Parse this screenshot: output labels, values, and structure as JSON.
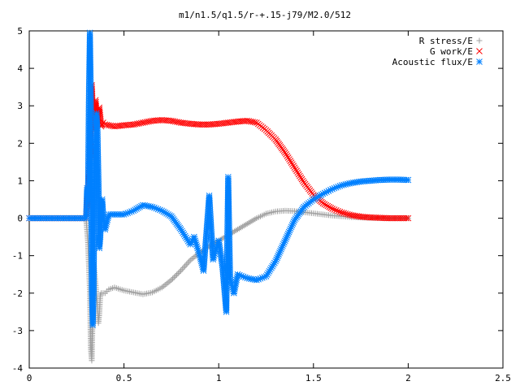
{
  "chart_data": {
    "type": "scatter",
    "title": "m1/n1.5/q1.5/r-+.15-j79/M2.0/512",
    "xlabel": "",
    "ylabel": "",
    "xlim": [
      0,
      2.5
    ],
    "ylim": [
      -4,
      5
    ],
    "x_ticks": [
      "0",
      "0.5",
      "1",
      "1.5",
      "2",
      "2.5"
    ],
    "y_ticks": [
      "-4",
      "-3",
      "-2",
      "-1",
      "0",
      "1",
      "2",
      "3",
      "4",
      "5"
    ],
    "grid": false,
    "legend_position": "top-right",
    "series": [
      {
        "name": "R stress/E",
        "color": "#a0a0a0",
        "marker": "plus",
        "points": [
          [
            0.0,
            0.0
          ],
          [
            0.1,
            0.0
          ],
          [
            0.2,
            0.0
          ],
          [
            0.3,
            0.0
          ],
          [
            0.31,
            -0.65
          ],
          [
            0.315,
            -1.3
          ],
          [
            0.32,
            -1.95
          ],
          [
            0.325,
            -3.5
          ],
          [
            0.33,
            -3.8
          ],
          [
            0.34,
            -1.2
          ],
          [
            0.345,
            -1.45
          ],
          [
            0.36,
            -2.35
          ],
          [
            0.365,
            -2.8
          ],
          [
            0.37,
            -2.55
          ],
          [
            0.375,
            -2.05
          ],
          [
            0.38,
            -2.0
          ],
          [
            0.4,
            -2.0
          ],
          [
            0.42,
            -1.9
          ],
          [
            0.45,
            -1.85
          ],
          [
            0.5,
            -1.93
          ],
          [
            0.55,
            -1.98
          ],
          [
            0.6,
            -2.03
          ],
          [
            0.65,
            -1.98
          ],
          [
            0.7,
            -1.85
          ],
          [
            0.75,
            -1.65
          ],
          [
            0.8,
            -1.4
          ],
          [
            0.85,
            -1.12
          ],
          [
            0.9,
            -0.92
          ],
          [
            0.95,
            -0.75
          ],
          [
            1.0,
            -0.6
          ],
          [
            1.05,
            -0.45
          ],
          [
            1.1,
            -0.3
          ],
          [
            1.15,
            -0.15
          ],
          [
            1.2,
            0.0
          ],
          [
            1.25,
            0.12
          ],
          [
            1.3,
            0.18
          ],
          [
            1.35,
            0.2
          ],
          [
            1.4,
            0.19
          ],
          [
            1.45,
            0.16
          ],
          [
            1.5,
            0.13
          ],
          [
            1.55,
            0.1
          ],
          [
            1.6,
            0.07
          ],
          [
            1.7,
            0.03
          ],
          [
            1.8,
            0.01
          ],
          [
            1.9,
            0.0
          ],
          [
            2.0,
            0.0
          ]
        ]
      },
      {
        "name": "G work/E",
        "color": "#ff0000",
        "marker": "x",
        "points": [
          [
            0.0,
            0.0
          ],
          [
            0.1,
            0.0
          ],
          [
            0.2,
            0.0
          ],
          [
            0.3,
            0.0
          ],
          [
            0.31,
            0.8
          ],
          [
            0.315,
            1.2
          ],
          [
            0.32,
            1.65
          ],
          [
            0.325,
            2.4
          ],
          [
            0.33,
            3.55
          ],
          [
            0.34,
            2.35
          ],
          [
            0.35,
            3.15
          ],
          [
            0.36,
            2.6
          ],
          [
            0.37,
            2.95
          ],
          [
            0.38,
            2.45
          ],
          [
            0.39,
            2.55
          ],
          [
            0.4,
            2.5
          ],
          [
            0.45,
            2.45
          ],
          [
            0.5,
            2.48
          ],
          [
            0.55,
            2.5
          ],
          [
            0.6,
            2.55
          ],
          [
            0.65,
            2.6
          ],
          [
            0.7,
            2.62
          ],
          [
            0.75,
            2.6
          ],
          [
            0.8,
            2.55
          ],
          [
            0.85,
            2.52
          ],
          [
            0.9,
            2.5
          ],
          [
            0.95,
            2.5
          ],
          [
            1.0,
            2.52
          ],
          [
            1.05,
            2.55
          ],
          [
            1.1,
            2.58
          ],
          [
            1.15,
            2.6
          ],
          [
            1.2,
            2.55
          ],
          [
            1.25,
            2.35
          ],
          [
            1.3,
            2.1
          ],
          [
            1.35,
            1.75
          ],
          [
            1.4,
            1.35
          ],
          [
            1.45,
            0.95
          ],
          [
            1.5,
            0.62
          ],
          [
            1.55,
            0.4
          ],
          [
            1.6,
            0.25
          ],
          [
            1.65,
            0.15
          ],
          [
            1.7,
            0.08
          ],
          [
            1.75,
            0.04
          ],
          [
            1.8,
            0.02
          ],
          [
            1.9,
            0.0
          ],
          [
            2.0,
            0.0
          ]
        ]
      },
      {
        "name": "Acoustic flux/E",
        "color": "#0080ff",
        "marker": "star",
        "points": [
          [
            0.0,
            0.0
          ],
          [
            0.1,
            0.0
          ],
          [
            0.2,
            0.0
          ],
          [
            0.3,
            0.0
          ],
          [
            0.305,
            0.8
          ],
          [
            0.31,
            0.5
          ],
          [
            0.315,
            3.25
          ],
          [
            0.32,
            4.95
          ],
          [
            0.325,
            3.2
          ],
          [
            0.33,
            -1.9
          ],
          [
            0.335,
            -2.85
          ],
          [
            0.34,
            -1.95
          ],
          [
            0.345,
            1.9
          ],
          [
            0.35,
            2.0
          ],
          [
            0.355,
            2.8
          ],
          [
            0.36,
            2.35
          ],
          [
            0.365,
            1.05
          ],
          [
            0.37,
            -0.8
          ],
          [
            0.375,
            -0.5
          ],
          [
            0.38,
            0.2
          ],
          [
            0.385,
            0.5
          ],
          [
            0.39,
            0.1
          ],
          [
            0.4,
            -0.3
          ],
          [
            0.42,
            0.1
          ],
          [
            0.45,
            0.1
          ],
          [
            0.5,
            0.1
          ],
          [
            0.55,
            0.2
          ],
          [
            0.6,
            0.35
          ],
          [
            0.65,
            0.3
          ],
          [
            0.7,
            0.2
          ],
          [
            0.75,
            0.05
          ],
          [
            0.8,
            -0.3
          ],
          [
            0.85,
            -0.7
          ],
          [
            0.87,
            -0.5
          ],
          [
            0.9,
            -1.0
          ],
          [
            0.92,
            -1.4
          ],
          [
            0.95,
            0.6
          ],
          [
            0.97,
            -1.1
          ],
          [
            1.0,
            -0.6
          ],
          [
            1.02,
            -1.3
          ],
          [
            1.04,
            -2.5
          ],
          [
            1.05,
            1.1
          ],
          [
            1.06,
            -1.6
          ],
          [
            1.08,
            -2.0
          ],
          [
            1.1,
            -1.5
          ],
          [
            1.15,
            -1.6
          ],
          [
            1.2,
            -1.65
          ],
          [
            1.25,
            -1.55
          ],
          [
            1.3,
            -1.15
          ],
          [
            1.35,
            -0.6
          ],
          [
            1.4,
            -0.05
          ],
          [
            1.45,
            0.3
          ],
          [
            1.5,
            0.5
          ],
          [
            1.55,
            0.65
          ],
          [
            1.6,
            0.78
          ],
          [
            1.65,
            0.88
          ],
          [
            1.7,
            0.94
          ],
          [
            1.75,
            0.98
          ],
          [
            1.8,
            1.0
          ],
          [
            1.85,
            1.02
          ],
          [
            1.9,
            1.03
          ],
          [
            1.95,
            1.03
          ],
          [
            2.0,
            1.02
          ]
        ]
      }
    ]
  }
}
